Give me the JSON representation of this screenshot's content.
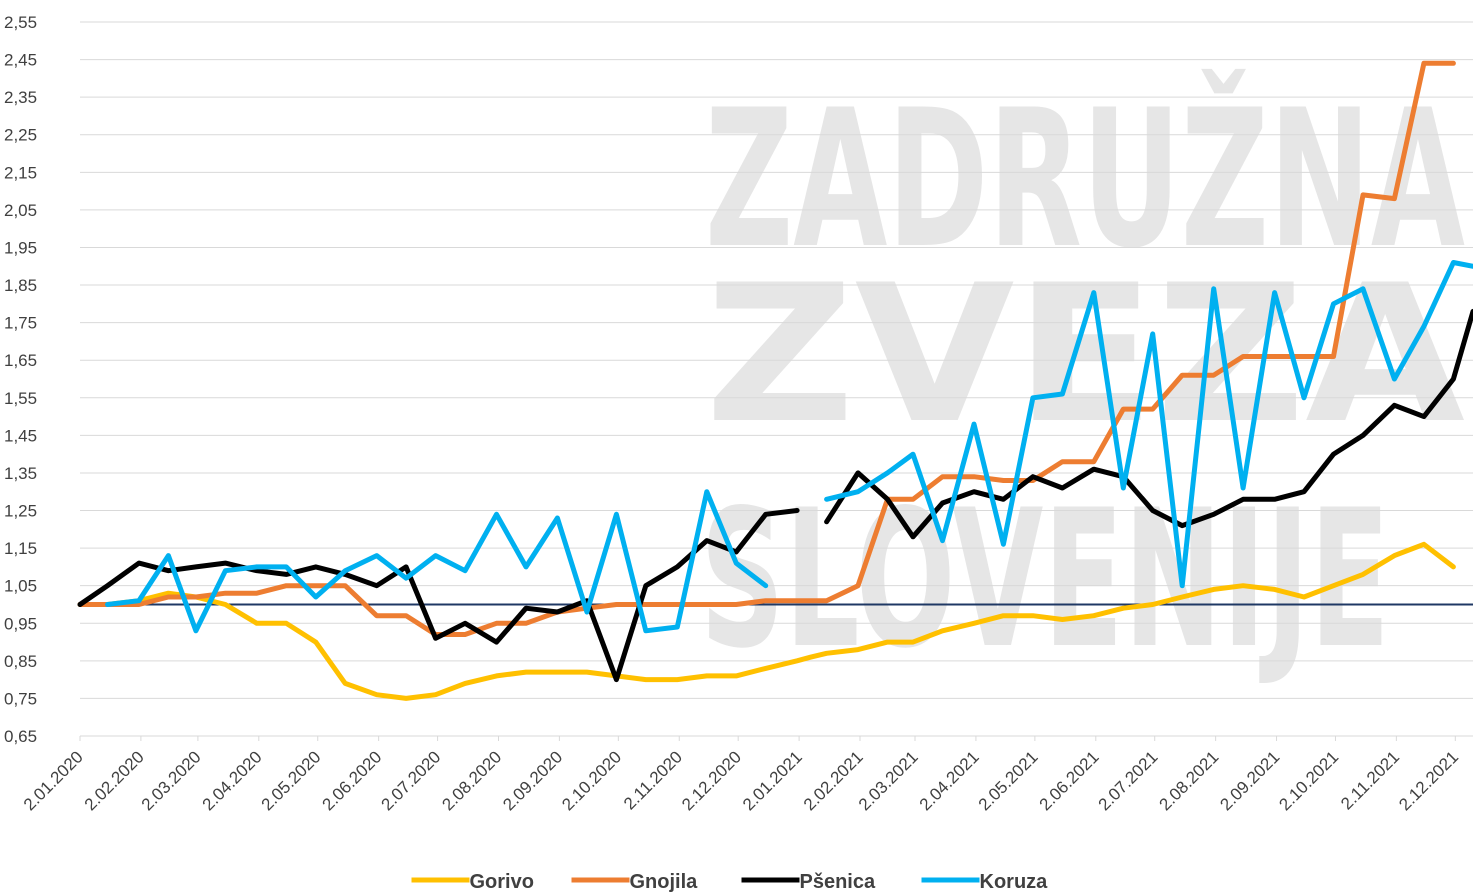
{
  "chart_data": {
    "type": "line",
    "watermark": [
      "ZADRUŽNA",
      "ZVEZA",
      "SLOVENIJE"
    ],
    "x": [
      "2020-01-02",
      "2020-01-16",
      "2020-02-01",
      "2020-02-16",
      "2020-03-01",
      "2020-03-16",
      "2020-04-01",
      "2020-04-16",
      "2020-05-01",
      "2020-05-16",
      "2020-06-01",
      "2020-06-16",
      "2020-07-01",
      "2020-07-16",
      "2020-08-01",
      "2020-08-16",
      "2020-09-01",
      "2020-09-16",
      "2020-10-01",
      "2020-10-16",
      "2020-11-01",
      "2020-11-16",
      "2020-12-01",
      "2020-12-16",
      "2021-01-01",
      "2021-01-08",
      "2021-01-16",
      "2021-02-01",
      "2021-02-16",
      "2021-03-01",
      "2021-03-16",
      "2021-04-01",
      "2021-04-16",
      "2021-05-01",
      "2021-05-16",
      "2021-06-01",
      "2021-06-16",
      "2021-07-01",
      "2021-07-16",
      "2021-08-01",
      "2021-08-16",
      "2021-09-01",
      "2021-09-16",
      "2021-10-01",
      "2021-10-16",
      "2021-11-01",
      "2021-11-16",
      "2021-12-01",
      "2021-12-11"
    ],
    "series": [
      {
        "name": "Gorivo",
        "color": "#ffc000",
        "values": [
          1.0,
          1.0,
          1.01,
          1.03,
          1.02,
          1.0,
          0.95,
          0.95,
          0.9,
          0.79,
          0.76,
          0.75,
          0.76,
          0.79,
          0.81,
          0.82,
          0.82,
          0.82,
          0.81,
          0.8,
          0.8,
          0.81,
          0.81,
          0.83,
          0.85,
          0.86,
          0.87,
          0.88,
          0.9,
          0.9,
          0.93,
          0.95,
          0.97,
          0.97,
          0.96,
          0.97,
          0.99,
          1.0,
          1.02,
          1.04,
          1.05,
          1.04,
          1.02,
          1.05,
          1.08,
          1.13,
          1.16,
          1.1,
          null
        ]
      },
      {
        "name": "Gnojila",
        "color": "#ed7d31",
        "values": [
          1.0,
          1.0,
          1.0,
          1.02,
          1.02,
          1.03,
          1.03,
          1.05,
          1.05,
          1.05,
          0.97,
          0.97,
          0.92,
          0.92,
          0.95,
          0.95,
          0.98,
          0.99,
          1.0,
          1.0,
          1.0,
          1.0,
          1.0,
          1.01,
          1.01,
          1.01,
          1.01,
          1.05,
          1.28,
          1.28,
          1.34,
          1.34,
          1.33,
          1.33,
          1.38,
          1.38,
          1.52,
          1.52,
          1.61,
          1.61,
          1.66,
          1.66,
          1.66,
          1.66,
          2.09,
          2.08,
          2.44,
          2.44,
          null
        ]
      },
      {
        "name": "Pšenica",
        "color": "#000000",
        "values": [
          1.0,
          1.05,
          1.11,
          1.09,
          1.1,
          1.11,
          1.09,
          1.08,
          1.1,
          1.08,
          1.05,
          1.1,
          0.91,
          0.95,
          0.9,
          0.99,
          0.98,
          1.01,
          0.8,
          1.05,
          1.1,
          1.17,
          1.14,
          1.24,
          1.25,
          null,
          1.22,
          1.35,
          1.28,
          1.18,
          1.27,
          1.3,
          1.28,
          1.34,
          1.31,
          1.36,
          1.34,
          1.25,
          1.21,
          1.24,
          1.28,
          1.28,
          1.3,
          1.4,
          1.45,
          1.53,
          1.5,
          1.6,
          1.78
        ]
      },
      {
        "name": "Koruza",
        "color": "#00b0f0",
        "values": [
          null,
          1.0,
          1.01,
          1.13,
          0.93,
          1.09,
          1.1,
          1.1,
          1.02,
          1.09,
          1.13,
          1.07,
          1.13,
          1.09,
          1.24,
          1.1,
          1.23,
          0.98,
          1.24,
          0.93,
          0.94,
          1.3,
          1.11,
          1.05,
          null,
          null,
          1.28,
          1.3,
          1.35,
          1.4,
          1.17,
          1.48,
          1.16,
          1.55,
          1.56,
          1.83,
          1.31,
          1.72,
          1.05,
          1.84,
          1.31,
          1.83,
          1.55,
          1.8,
          1.84,
          1.6,
          1.74,
          1.91,
          1.9
        ]
      }
    ],
    "reference_line": {
      "value": 1,
      "color": "#1f3864"
    },
    "xlim": [
      "2020-01-02",
      "2021-12-11"
    ],
    "xticks": [
      {
        "value": "2020-01-02",
        "label": "2.01.2020"
      },
      {
        "value": "2020-02-02",
        "label": "2.02.2020"
      },
      {
        "value": "2020-03-02",
        "label": "2.03.2020"
      },
      {
        "value": "2020-04-02",
        "label": "2.04.2020"
      },
      {
        "value": "2020-05-02",
        "label": "2.05.2020"
      },
      {
        "value": "2020-06-02",
        "label": "2.06.2020"
      },
      {
        "value": "2020-07-02",
        "label": "2.07.2020"
      },
      {
        "value": "2020-08-02",
        "label": "2.08.2020"
      },
      {
        "value": "2020-09-02",
        "label": "2.09.2020"
      },
      {
        "value": "2020-10-02",
        "label": "2.10.2020"
      },
      {
        "value": "2020-11-02",
        "label": "2.11.2020"
      },
      {
        "value": "2020-12-02",
        "label": "2.12.2020"
      },
      {
        "value": "2021-01-02",
        "label": "2.01.2021"
      },
      {
        "value": "2021-02-02",
        "label": "2.02.2021"
      },
      {
        "value": "2021-03-02",
        "label": "2.03.2021"
      },
      {
        "value": "2021-04-02",
        "label": "2.04.2021"
      },
      {
        "value": "2021-05-02",
        "label": "2.05.2021"
      },
      {
        "value": "2021-06-02",
        "label": "2.06.2021"
      },
      {
        "value": "2021-07-02",
        "label": "2.07.2021"
      },
      {
        "value": "2021-08-02",
        "label": "2.08.2021"
      },
      {
        "value": "2021-09-02",
        "label": "2.09.2021"
      },
      {
        "value": "2021-10-02",
        "label": "2.10.2021"
      },
      {
        "value": "2021-11-02",
        "label": "2.11.2021"
      },
      {
        "value": "2021-12-02",
        "label": "2.12.2021"
      }
    ],
    "ylim": [
      0.65,
      2.55
    ],
    "yticks": [
      {
        "value": 0.65,
        "label": "0,65"
      },
      {
        "value": 0.75,
        "label": "0,75"
      },
      {
        "value": 0.85,
        "label": "0,85"
      },
      {
        "value": 0.95,
        "label": "0,95"
      },
      {
        "value": 1.05,
        "label": "1,05"
      },
      {
        "value": 1.15,
        "label": "1,15"
      },
      {
        "value": 1.25,
        "label": "1,25"
      },
      {
        "value": 1.35,
        "label": "1,35"
      },
      {
        "value": 1.45,
        "label": "1,45"
      },
      {
        "value": 1.55,
        "label": "1,55"
      },
      {
        "value": 1.65,
        "label": "1,65"
      },
      {
        "value": 1.75,
        "label": "1,75"
      },
      {
        "value": 1.85,
        "label": "1,85"
      },
      {
        "value": 1.95,
        "label": "1,95"
      },
      {
        "value": 2.05,
        "label": "2,05"
      },
      {
        "value": 2.15,
        "label": "2,15"
      },
      {
        "value": 2.25,
        "label": "2,25"
      },
      {
        "value": 2.35,
        "label": "2,35"
      },
      {
        "value": 2.45,
        "label": "2,45"
      },
      {
        "value": 2.55,
        "label": "2,55"
      }
    ],
    "grid": true,
    "legend": "bottom"
  }
}
